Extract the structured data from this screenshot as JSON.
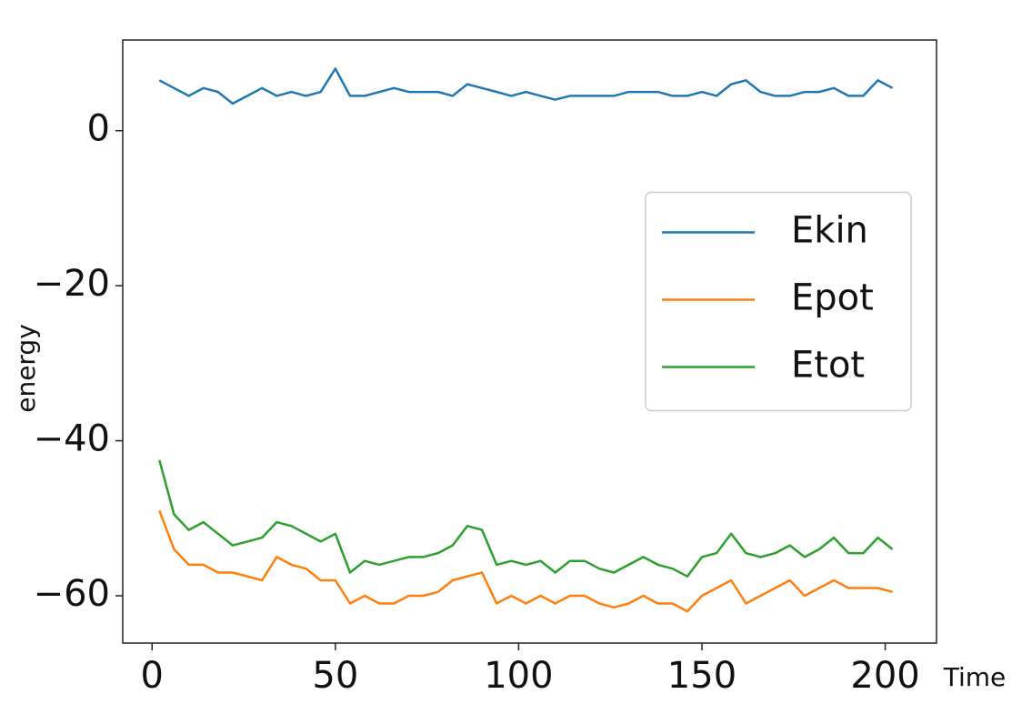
{
  "chart_data": {
    "type": "line",
    "x_label": "Time",
    "y_label": "energy",
    "x": [
      2,
      6,
      10,
      14,
      18,
      22,
      26,
      30,
      34,
      38,
      42,
      46,
      50,
      54,
      58,
      62,
      66,
      70,
      74,
      78,
      82,
      86,
      90,
      94,
      98,
      102,
      106,
      110,
      114,
      118,
      122,
      126,
      130,
      134,
      138,
      142,
      146,
      150,
      154,
      158,
      162,
      166,
      170,
      174,
      178,
      182,
      186,
      190,
      194,
      198,
      202
    ],
    "series": [
      {
        "name": "Ekin",
        "color": "#1f77b4",
        "values": [
          6.5,
          5.5,
          4.5,
          5.5,
          5,
          3.5,
          4.5,
          5.5,
          4.5,
          5,
          4.5,
          5,
          8,
          4.5,
          4.5,
          5,
          5.5,
          5,
          5,
          5,
          4.5,
          6,
          5.5,
          5,
          4.5,
          5,
          4.5,
          4,
          4.5,
          4.5,
          4.5,
          4.5,
          5,
          5,
          5,
          4.5,
          4.5,
          5,
          4.5,
          6,
          6.5,
          5,
          4.5,
          4.5,
          5,
          5,
          5.5,
          4.5,
          4.5,
          6.5,
          5.5
        ]
      },
      {
        "name": "Epot",
        "color": "#ff7f0e",
        "values": [
          -49,
          -54,
          -56,
          -56,
          -57,
          -57,
          -57.5,
          -58,
          -55,
          -56,
          -56.5,
          -58,
          -58,
          -61,
          -60,
          -61,
          -61,
          -60,
          -60,
          -59.5,
          -58,
          -57.5,
          -57,
          -61,
          -60,
          -61,
          -60,
          -61,
          -60,
          -60,
          -61,
          -61.5,
          -61,
          -60,
          -61,
          -61,
          -62,
          -60,
          -59,
          -58,
          -61,
          -60,
          -59,
          -58,
          -60,
          -59,
          -58,
          -59,
          -59,
          -59,
          -59.5
        ]
      },
      {
        "name": "Etot",
        "color": "#2ca02c",
        "values": [
          -42.5,
          -49.5,
          -51.5,
          -50.5,
          -52,
          -53.5,
          -53,
          -52.5,
          -50.5,
          -51,
          -52,
          -53,
          -52,
          -57,
          -55.5,
          -56,
          -55.5,
          -55,
          -55,
          -54.5,
          -53.5,
          -51,
          -51.5,
          -56,
          -55.5,
          -56,
          -55.5,
          -57,
          -55.5,
          -55.5,
          -56.5,
          -57,
          -56,
          -55,
          -56,
          -56.5,
          -57.5,
          -55,
          -54.5,
          -52,
          -54.5,
          -55,
          -54.5,
          -53.5,
          -55,
          -54,
          -52.5,
          -54.5,
          -54.5,
          -52.5,
          -54
        ]
      }
    ],
    "xlim": [
      -8,
      214
    ],
    "ylim": [
      -66.1,
      11.7
    ],
    "xticks": [
      0,
      50,
      100,
      150,
      200
    ],
    "yticks": [
      {
        "value": -60,
        "label": "−60"
      },
      {
        "value": -40,
        "label": "−40"
      },
      {
        "value": -20,
        "label": "−20"
      },
      0
    ],
    "legend": "center right"
  }
}
